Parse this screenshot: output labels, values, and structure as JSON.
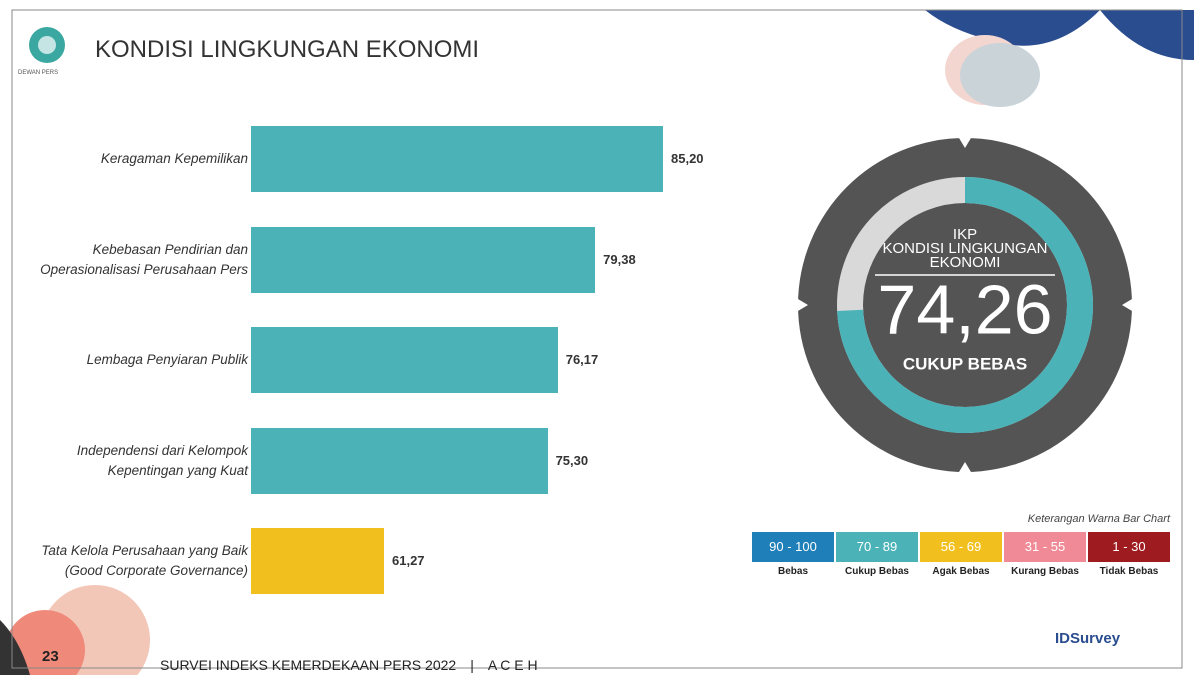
{
  "header": {
    "title": "KONDISI LINGKUNGAN EKONOMI",
    "logo_text": "DEWAN PERS"
  },
  "chart_data": [
    {
      "type": "bar",
      "categories": [
        "Keragaman Kepemilikan",
        "Kebebasan Pendirian dan Operasionalisasi Perusahaan Pers",
        "Lembaga Penyiaran Publik",
        "Independensi dari Kelompok Kepentingan yang Kuat",
        "Tata Kelola Perusahaan yang Baik (Good Corporate Governance)"
      ],
      "values": [
        85.2,
        79.38,
        76.17,
        75.3,
        61.27
      ],
      "value_labels": [
        "85,20",
        "79,38",
        "76,17",
        "75,30",
        "61,27"
      ],
      "colors": [
        "#4bb3b8",
        "#4bb3b8",
        "#4bb3b8",
        "#4bb3b8",
        "#f2c01e"
      ]
    },
    {
      "type": "gauge",
      "title": [
        "IKP",
        "KONDISI LINGKUNGAN",
        "EKONOMI"
      ],
      "value": 74.26,
      "value_label": "74,26",
      "status": "CUKUP BEBAS",
      "lim": [
        0,
        100
      ],
      "color": "#4bb3b8",
      "track_color": "#d9d9d9"
    }
  ],
  "legend": {
    "title": "Keterangan Warna Bar Chart",
    "items": [
      {
        "range": "90 - 100",
        "label": "Bebas",
        "color": "#1f7fb8"
      },
      {
        "range": "70 - 89",
        "label": "Cukup Bebas",
        "color": "#4bb3b8"
      },
      {
        "range": "56 - 69",
        "label": "Agak Bebas",
        "color": "#f2c01e"
      },
      {
        "range": "31 - 55",
        "label": "Kurang Bebas",
        "color": "#ef8a96"
      },
      {
        "range": "1 - 30",
        "label": "Tidak Bebas",
        "color": "#9e1b1f"
      }
    ]
  },
  "footer": {
    "page": "23",
    "text": "SURVEI INDEKS KEMERDEKAAN PERS 2022",
    "separator": "|",
    "region": "A C E H",
    "brand": "IDSurvey"
  }
}
